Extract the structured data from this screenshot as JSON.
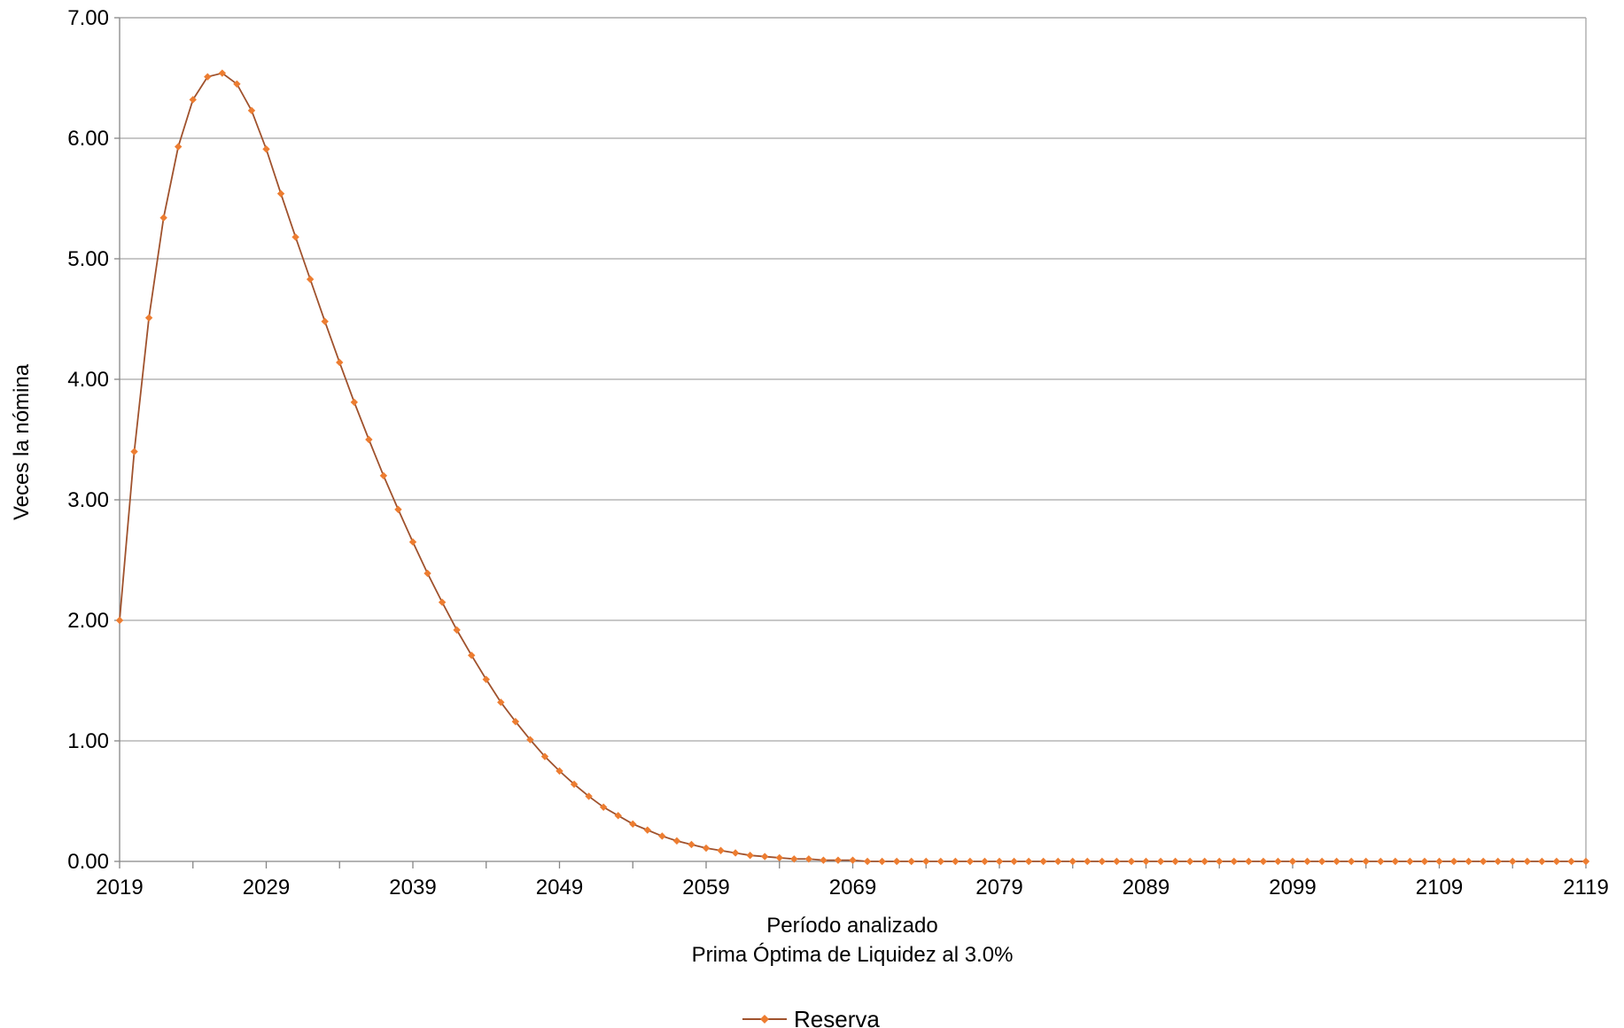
{
  "chart_data": {
    "type": "line",
    "title": "",
    "xlabel": "Período analizado",
    "xlabel2": "Prima Óptima de Liquidez al 3.0%",
    "ylabel": "Veces la nómina",
    "xlim": [
      2019,
      2119
    ],
    "ylim": [
      0,
      7
    ],
    "x_tick_labels": [
      "2019",
      "2029",
      "2039",
      "2049",
      "2059",
      "2069",
      "2079",
      "2089",
      "2099",
      "2109",
      "2119"
    ],
    "y_tick_labels": [
      "0.00",
      "1.00",
      "2.00",
      "3.00",
      "4.00",
      "5.00",
      "6.00",
      "7.00"
    ],
    "grid": "horizontal",
    "legend_position": "bottom-center",
    "series": [
      {
        "name": "Reserva",
        "color": "#ED7D31",
        "line_color": "#A0522D",
        "x_start": 2019,
        "x_step": 1,
        "values": [
          2.0,
          3.4,
          4.51,
          5.34,
          5.93,
          6.32,
          6.51,
          6.54,
          6.45,
          6.23,
          5.91,
          5.54,
          5.18,
          4.83,
          4.48,
          4.14,
          3.81,
          3.5,
          3.2,
          2.92,
          2.65,
          2.39,
          2.15,
          1.92,
          1.71,
          1.51,
          1.32,
          1.16,
          1.01,
          0.87,
          0.75,
          0.64,
          0.54,
          0.45,
          0.38,
          0.31,
          0.26,
          0.21,
          0.17,
          0.14,
          0.11,
          0.09,
          0.07,
          0.05,
          0.04,
          0.03,
          0.02,
          0.02,
          0.01,
          0.01,
          0.01,
          0.0,
          0.0,
          0.0,
          0.0,
          0.0,
          0.0,
          0.0,
          0.0,
          0.0,
          0.0,
          0.0,
          0.0,
          0.0,
          0.0,
          0.0,
          0.0,
          0.0,
          0.0,
          0.0,
          0.0,
          0.0,
          0.0,
          0.0,
          0.0,
          0.0,
          0.0,
          0.0,
          0.0,
          0.0,
          0.0,
          0.0,
          0.0,
          0.0,
          0.0,
          0.0,
          0.0,
          0.0,
          0.0,
          0.0,
          0.0,
          0.0,
          0.0,
          0.0,
          0.0,
          0.0,
          0.0,
          0.0,
          0.0,
          0.0,
          0.0
        ]
      }
    ]
  }
}
